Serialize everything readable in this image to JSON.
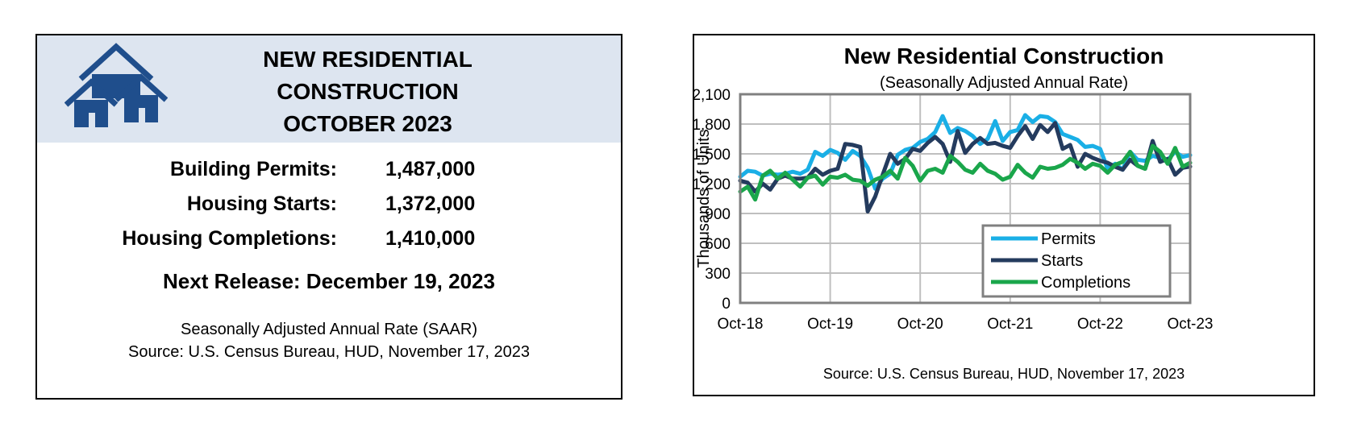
{
  "summary": {
    "title_lines": [
      "NEW RESIDENTIAL",
      "CONSTRUCTION",
      "OCTOBER 2023"
    ],
    "logo_icon": "houses-icon",
    "stats": [
      {
        "label": "Building Permits:",
        "value": "1,487,000"
      },
      {
        "label": "Housing Starts:",
        "value": "1,372,000"
      },
      {
        "label": "Housing Completions:",
        "value": "1,410,000"
      }
    ],
    "next_release": "Next Release:  December 19, 2023",
    "footer_line1": "Seasonally Adjusted Annual Rate (SAAR)",
    "footer_line2": "Source:  U.S. Census Bureau, HUD, November 17, 2023",
    "colors": {
      "header_bg": "#dde5f0",
      "icon": "#1f4e8c"
    }
  },
  "chart_data": {
    "type": "line",
    "title": "New Residential Construction",
    "subtitle": "(Seasonally Adjusted Annual Rate)",
    "ylabel": "Thousands of Units",
    "xlabel": "",
    "source": "Source:  U.S. Census Bureau, HUD, November 17, 2023",
    "ylim": [
      0,
      2100
    ],
    "yticks": [
      0,
      300,
      600,
      900,
      1200,
      1500,
      1800,
      2100
    ],
    "ytick_labels": [
      "0",
      "300",
      "600",
      "900",
      "1,200",
      "1,500",
      "1,800",
      "2,100"
    ],
    "xtick_labels": [
      "Oct-18",
      "Oct-19",
      "Oct-20",
      "Oct-21",
      "Oct-22",
      "Oct-23"
    ],
    "grid": true,
    "legend_position": "bottom-right",
    "x": [
      "Oct-18",
      "Nov-18",
      "Dec-18",
      "Jan-19",
      "Feb-19",
      "Mar-19",
      "Apr-19",
      "May-19",
      "Jun-19",
      "Jul-19",
      "Aug-19",
      "Sep-19",
      "Oct-19",
      "Nov-19",
      "Dec-19",
      "Jan-20",
      "Feb-20",
      "Mar-20",
      "Apr-20",
      "May-20",
      "Jun-20",
      "Jul-20",
      "Aug-20",
      "Sep-20",
      "Oct-20",
      "Nov-20",
      "Dec-20",
      "Jan-21",
      "Feb-21",
      "Mar-21",
      "Apr-21",
      "May-21",
      "Jun-21",
      "Jul-21",
      "Aug-21",
      "Sep-21",
      "Oct-21",
      "Nov-21",
      "Dec-21",
      "Jan-22",
      "Feb-22",
      "Mar-22",
      "Apr-22",
      "May-22",
      "Jun-22",
      "Jul-22",
      "Aug-22",
      "Sep-22",
      "Oct-22",
      "Nov-22",
      "Dec-22",
      "Jan-23",
      "Feb-23",
      "Mar-23",
      "Apr-23",
      "May-23",
      "Jun-23",
      "Jul-23",
      "Aug-23",
      "Sep-23",
      "Oct-23"
    ],
    "series": [
      {
        "name": "Permits",
        "color": "#1aafe6",
        "values": [
          1270,
          1330,
          1320,
          1280,
          1300,
          1290,
          1300,
          1320,
          1300,
          1340,
          1520,
          1480,
          1540,
          1510,
          1440,
          1530,
          1480,
          1360,
          1150,
          1250,
          1300,
          1490,
          1540,
          1560,
          1620,
          1650,
          1720,
          1880,
          1710,
          1760,
          1730,
          1680,
          1600,
          1650,
          1830,
          1630,
          1720,
          1740,
          1890,
          1820,
          1880,
          1870,
          1820,
          1700,
          1670,
          1640,
          1570,
          1580,
          1550,
          1350,
          1400,
          1340,
          1520,
          1440,
          1430,
          1480,
          1460,
          1440,
          1520,
          1470,
          1487
        ]
      },
      {
        "name": "Starts",
        "color": "#243b5e",
        "values": [
          1230,
          1210,
          1120,
          1200,
          1140,
          1250,
          1280,
          1250,
          1250,
          1260,
          1350,
          1290,
          1330,
          1350,
          1600,
          1590,
          1570,
          920,
          1070,
          1290,
          1500,
          1400,
          1450,
          1550,
          1530,
          1610,
          1670,
          1600,
          1420,
          1730,
          1510,
          1600,
          1660,
          1600,
          1610,
          1580,
          1560,
          1680,
          1780,
          1650,
          1790,
          1720,
          1810,
          1550,
          1590,
          1370,
          1500,
          1460,
          1430,
          1410,
          1370,
          1340,
          1440,
          1380,
          1350,
          1630,
          1420,
          1450,
          1290,
          1360,
          1372
        ]
      },
      {
        "name": "Completions",
        "color": "#1aa64b",
        "values": [
          1120,
          1170,
          1040,
          1280,
          1330,
          1250,
          1310,
          1240,
          1170,
          1260,
          1280,
          1190,
          1270,
          1260,
          1290,
          1240,
          1230,
          1180,
          1240,
          1270,
          1330,
          1250,
          1460,
          1380,
          1230,
          1330,
          1350,
          1310,
          1480,
          1420,
          1340,
          1310,
          1400,
          1330,
          1300,
          1240,
          1270,
          1390,
          1310,
          1260,
          1370,
          1350,
          1360,
          1390,
          1450,
          1410,
          1350,
          1400,
          1380,
          1310,
          1390,
          1420,
          1520,
          1380,
          1350,
          1580,
          1520,
          1400,
          1560,
          1370,
          1410
        ]
      }
    ]
  }
}
